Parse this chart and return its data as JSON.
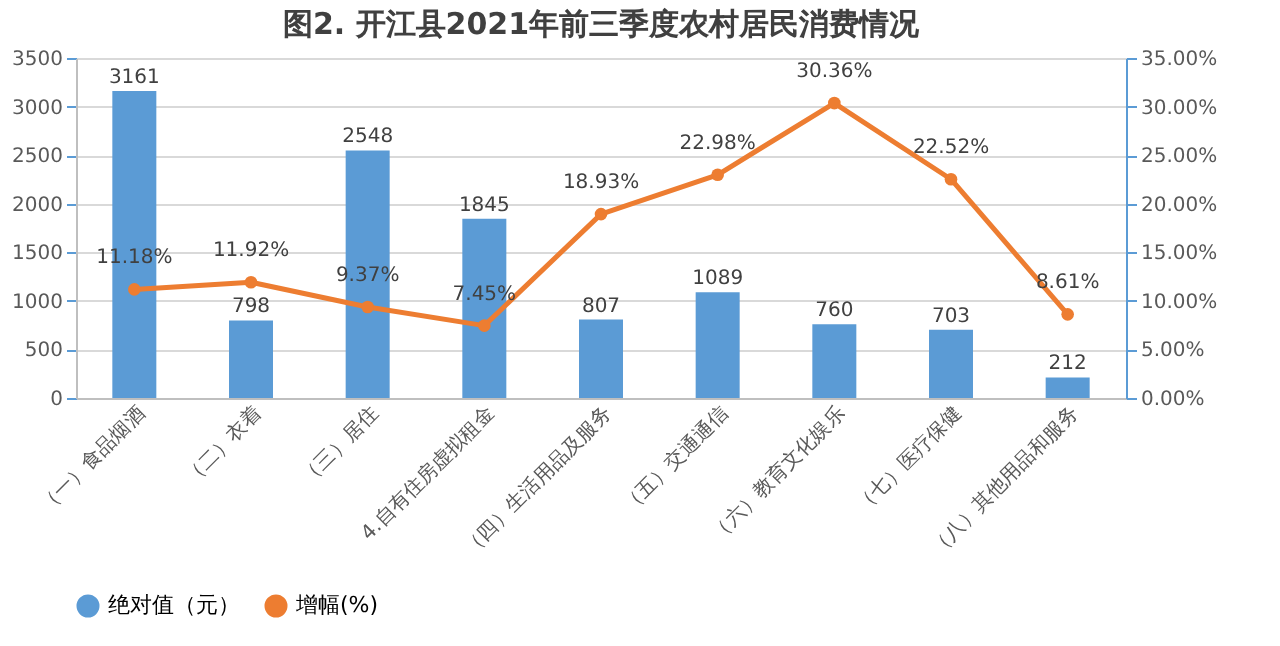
{
  "chart_data": {
    "type": "bar",
    "title": "图2.  开江县2021年前三季度农村居民消费情况",
    "categories": [
      "（一）食品烟酒",
      "（二）衣着",
      "（三）居住",
      "4.自有住房虚拟租金",
      "（四）生活用品及服务",
      "（五）交通通信",
      "（六）教育文化娱乐",
      "（七）医疗保健",
      "（八）其他用品和服务"
    ],
    "series": [
      {
        "name": "绝对值（元）",
        "color": "#5b9bd5",
        "values": [
          3161,
          798,
          2548,
          1845,
          807,
          1089,
          760,
          703,
          212
        ]
      },
      {
        "name": "增幅(%)",
        "type": "line",
        "axis": "y2",
        "color": "#ed7d31",
        "values": [
          11.18,
          11.92,
          9.37,
          7.45,
          18.93,
          22.98,
          30.36,
          22.52,
          8.61
        ],
        "value_labels": [
          "11.18%",
          "11.92%",
          "9.37%",
          "7.45%",
          "18.93%",
          "22.98%",
          "30.36%",
          "22.52%",
          "8.61%"
        ]
      }
    ],
    "ylim": [
      0,
      3500
    ],
    "yticks": [
      0,
      500,
      1000,
      1500,
      2000,
      2500,
      3000,
      3500
    ],
    "y2lim": [
      0,
      35
    ],
    "y2ticks": [
      {
        "value": 0,
        "label": "0.00%"
      },
      {
        "value": 5,
        "label": "5.00%"
      },
      {
        "value": 10,
        "label": "10.00%"
      },
      {
        "value": 15,
        "label": "15.00%"
      },
      {
        "value": 20,
        "label": "20.00%"
      },
      {
        "value": 25,
        "label": "25.00%"
      },
      {
        "value": 30,
        "label": "30.00%"
      },
      {
        "value": 35,
        "label": "35.00%"
      }
    ],
    "data_labels": true,
    "grid": "y",
    "legend": "bottom",
    "marker": "circle",
    "line_style": "solid"
  }
}
